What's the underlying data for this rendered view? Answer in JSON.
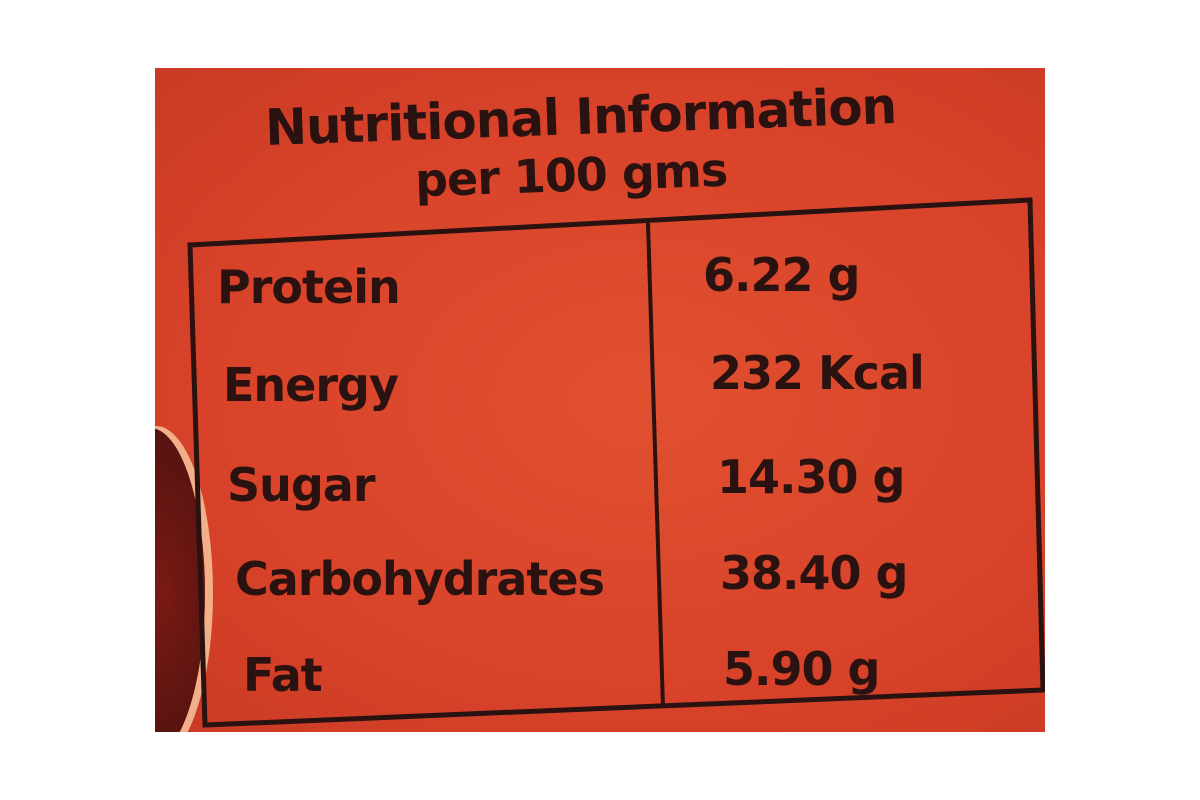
{
  "title": "Nutritional Information",
  "subtitle": "per 100 gms",
  "rows": [
    {
      "name": "Protein",
      "value": "6.22 g"
    },
    {
      "name": "Energy",
      "value": "232 Kcal"
    },
    {
      "name": "Sugar",
      "value": "14.30 g"
    },
    {
      "name": "Carbohydrates",
      "value": "38.40 g"
    },
    {
      "name": "Fat",
      "value": "5.90 g"
    }
  ],
  "colors": {
    "label_background": "#d9432a",
    "text": "#2a1210"
  }
}
